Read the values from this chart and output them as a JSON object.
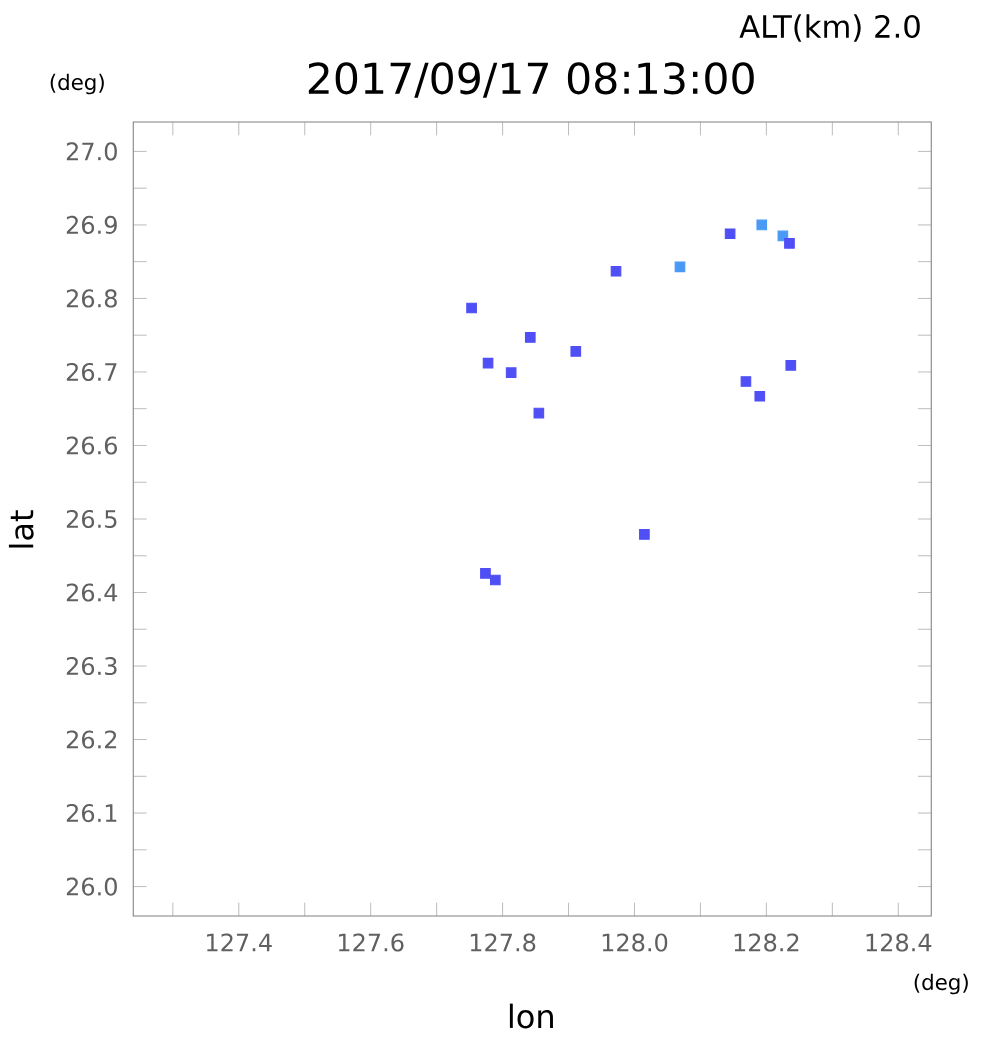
{
  "chart_data": {
    "type": "scatter",
    "title": "2017/09/17 08:13:00",
    "subtitle": "ALT(km) 2.0",
    "xlabel": "lon",
    "ylabel": "lat",
    "annotations": [
      "(deg)",
      "(deg)"
    ],
    "x": [
      127.753,
      127.842,
      127.778,
      127.813,
      127.911,
      127.855,
      127.972,
      128.069,
      128.145,
      128.193,
      128.225,
      128.235,
      128.237,
      128.169,
      128.19,
      127.774,
      127.789,
      128.015
    ],
    "values": [
      26.787,
      26.747,
      26.712,
      26.699,
      26.728,
      26.644,
      26.837,
      26.843,
      26.888,
      26.9,
      26.885,
      26.875,
      26.709,
      26.687,
      26.667,
      26.426,
      26.417,
      26.479
    ],
    "colors": [
      "#4f4ff5",
      "#4f4ff5",
      "#4f4ff5",
      "#4f4ff5",
      "#4f4ff5",
      "#4f4ff5",
      "#4f4ff5",
      "#4a9af5",
      "#4f4ff5",
      "#4a9af5",
      "#4a9af5",
      "#4f4ff5",
      "#4f4ff5",
      "#4f4ff5",
      "#4f4ff5",
      "#4f4ff5",
      "#4f4ff5",
      "#4f4ff5"
    ],
    "marker": "square",
    "grid": false,
    "xlim": [
      127.24,
      128.45
    ],
    "ylim": [
      25.96,
      27.04
    ],
    "xticks": [
      {
        "value": 127.3,
        "label": null
      },
      127.4,
      {
        "value": 127.5,
        "label": null
      },
      127.6,
      {
        "value": 127.7,
        "label": null
      },
      127.8,
      {
        "value": 127.9,
        "label": null
      },
      {
        "value": 128.0,
        "label": "128.0"
      },
      {
        "value": 128.1,
        "label": null
      },
      128.2,
      {
        "value": 128.3,
        "label": null
      },
      128.4
    ],
    "yticks": [
      {
        "value": 26.0,
        "label": "26.0"
      },
      {
        "value": 26.05,
        "label": null
      },
      26.1,
      {
        "value": 26.15,
        "label": null
      },
      26.2,
      {
        "value": 26.25,
        "label": null
      },
      26.3,
      {
        "value": 26.35,
        "label": null
      },
      26.4,
      {
        "value": 26.45,
        "label": null
      },
      26.5,
      {
        "value": 26.55,
        "label": null
      },
      26.6,
      {
        "value": 26.65,
        "label": null
      },
      26.7,
      {
        "value": 26.75,
        "label": null
      },
      26.8,
      {
        "value": 26.85,
        "label": null
      },
      26.9,
      {
        "value": 26.95,
        "label": null
      },
      {
        "value": 27.0,
        "label": "27.0"
      }
    ]
  }
}
